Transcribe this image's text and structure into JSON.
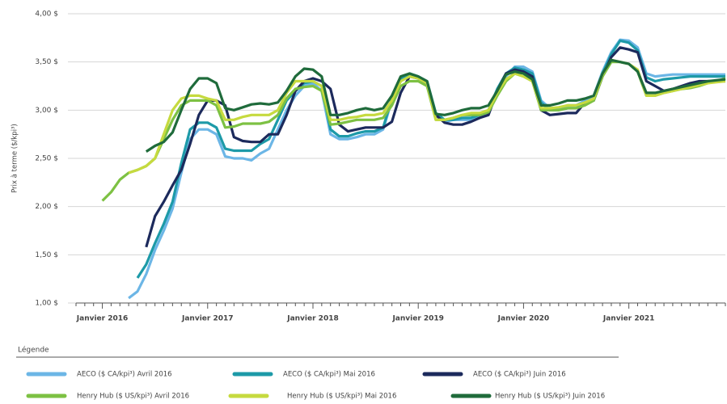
{
  "chart_data": {
    "type": "line",
    "y_label": "Prix à terme ($/kpi³)",
    "legend_title": "Légende",
    "categories": [
      null,
      null,
      null,
      "Janvier 2016",
      null,
      null,
      null,
      null,
      null,
      null,
      null,
      null,
      null,
      null,
      null,
      "Janvier 2017",
      null,
      null,
      null,
      null,
      null,
      null,
      null,
      null,
      null,
      null,
      null,
      "Janvier 2018",
      null,
      null,
      null,
      null,
      null,
      null,
      null,
      null,
      null,
      null,
      null,
      "Janvier 2019",
      null,
      null,
      null,
      null,
      null,
      null,
      null,
      null,
      null,
      null,
      null,
      "Janvier 2020",
      null,
      null,
      null,
      null,
      null,
      null,
      null,
      null,
      null,
      null,
      null,
      "Janvier 2021",
      null,
      null,
      null,
      null,
      null,
      null,
      null,
      null,
      null,
      null,
      null
    ],
    "ylim": [
      1,
      4
    ],
    "yticks": [
      {
        "value": 1,
        "label": "1,00 $"
      },
      {
        "value": 1.5,
        "label": "1,50 $"
      },
      {
        "value": 2,
        "label": "2,00 $"
      },
      {
        "value": 2.5,
        "label": "2,50 $"
      },
      {
        "value": 3,
        "label": "3,00 $"
      },
      {
        "value": 3.5,
        "label": "3,50 $"
      },
      {
        "value": 4,
        "label": "4,00 $"
      }
    ],
    "grid": true,
    "series": [
      {
        "name": "AECO ($ CA/kpi³) Avril 2016",
        "color": "#6cb6e6",
        "values": [
          null,
          null,
          null,
          null,
          null,
          null,
          1.05,
          1.12,
          1.3,
          1.55,
          1.75,
          1.98,
          2.35,
          2.7,
          2.8,
          2.8,
          2.75,
          2.52,
          2.5,
          2.5,
          2.48,
          2.55,
          2.6,
          2.8,
          3.0,
          3.15,
          3.25,
          3.28,
          3.2,
          2.75,
          2.7,
          2.7,
          2.72,
          2.75,
          2.75,
          2.8,
          3.1,
          3.3,
          3.38,
          3.35,
          3.25,
          2.95,
          2.88,
          2.9,
          2.9,
          2.9,
          2.92,
          2.98,
          3.2,
          3.35,
          3.45,
          3.45,
          3.4,
          3.1,
          3.02,
          3.02,
          3.05,
          3.05,
          3.1,
          3.15,
          3.4,
          3.6,
          3.73,
          3.72,
          3.65,
          3.38,
          3.35,
          3.36,
          3.37,
          3.37,
          3.37,
          3.37,
          3.37,
          3.37,
          3.37
        ]
      },
      {
        "name": "AECO ($ CA/kpi³) Mai 2016",
        "color": "#1d9aa8",
        "values": [
          null,
          null,
          null,
          null,
          null,
          null,
          null,
          1.26,
          1.4,
          1.62,
          1.82,
          2.05,
          2.45,
          2.8,
          2.87,
          2.87,
          2.82,
          2.6,
          2.58,
          2.58,
          2.58,
          2.65,
          2.7,
          2.9,
          3.1,
          3.2,
          3.28,
          3.3,
          3.25,
          2.8,
          2.73,
          2.73,
          2.76,
          2.78,
          2.78,
          2.82,
          3.12,
          3.32,
          3.38,
          3.35,
          3.3,
          2.97,
          2.9,
          2.9,
          2.92,
          2.92,
          2.95,
          3.0,
          3.22,
          3.38,
          3.44,
          3.42,
          3.38,
          3.08,
          3.0,
          3.0,
          3.02,
          3.02,
          3.07,
          3.12,
          3.38,
          3.58,
          3.72,
          3.7,
          3.62,
          3.34,
          3.3,
          3.32,
          3.33,
          3.34,
          3.35,
          3.35,
          3.35,
          3.35,
          3.35
        ]
      },
      {
        "name": "AECO ($ CA/kpi³) Juin 2016",
        "color": "#1c2a5c",
        "values": [
          null,
          null,
          null,
          null,
          null,
          null,
          null,
          null,
          1.58,
          1.9,
          2.05,
          2.22,
          2.38,
          2.65,
          2.95,
          3.1,
          3.1,
          3.05,
          2.72,
          2.68,
          2.67,
          2.67,
          2.75,
          2.75,
          2.95,
          3.2,
          3.3,
          3.33,
          3.3,
          3.22,
          2.85,
          2.78,
          2.8,
          2.82,
          2.82,
          2.82,
          2.88,
          3.18,
          3.35,
          3.33,
          3.28,
          2.95,
          2.87,
          2.85,
          2.85,
          2.88,
          2.92,
          2.95,
          3.2,
          3.38,
          3.42,
          3.4,
          3.35,
          3.0,
          2.95,
          2.96,
          2.97,
          2.97,
          3.08,
          3.1,
          3.35,
          3.55,
          3.65,
          3.63,
          3.6,
          3.3,
          3.25,
          3.2,
          3.22,
          3.25,
          3.28,
          3.3,
          3.3,
          3.3,
          3.3
        ]
      },
      {
        "name": "Henry Hub ($ US/kpi³) Avril 2016",
        "color": "#7dc143",
        "values": [
          null,
          null,
          null,
          2.06,
          2.15,
          2.28,
          2.35,
          2.38,
          2.42,
          2.5,
          2.7,
          2.9,
          3.05,
          3.1,
          3.1,
          3.1,
          3.05,
          2.82,
          2.83,
          2.86,
          2.86,
          2.86,
          2.88,
          2.95,
          3.12,
          3.22,
          3.24,
          3.25,
          3.2,
          2.85,
          2.86,
          2.88,
          2.9,
          2.9,
          2.9,
          2.92,
          3.05,
          3.25,
          3.3,
          3.3,
          3.25,
          2.9,
          2.9,
          2.92,
          2.95,
          2.95,
          2.95,
          2.98,
          3.15,
          3.3,
          3.38,
          3.35,
          3.3,
          3.0,
          3.0,
          3.0,
          3.02,
          3.02,
          3.05,
          3.1,
          3.35,
          3.5,
          3.5,
          3.48,
          3.4,
          3.15,
          3.15,
          3.18,
          3.2,
          3.22,
          3.23,
          3.25,
          3.28,
          3.3,
          3.33
        ]
      },
      {
        "name": "Henry Hub ($ US/kpi³) Mai 2016",
        "color": "#c6da3f",
        "values": [
          null,
          null,
          null,
          null,
          null,
          null,
          2.35,
          2.38,
          2.42,
          2.5,
          2.75,
          3.0,
          3.12,
          3.15,
          3.15,
          3.12,
          3.1,
          2.9,
          2.9,
          2.93,
          2.95,
          2.95,
          2.95,
          3.0,
          3.18,
          3.3,
          3.3,
          3.3,
          3.25,
          2.9,
          2.9,
          2.92,
          2.93,
          2.95,
          2.95,
          2.97,
          3.1,
          3.3,
          3.35,
          3.33,
          3.28,
          2.9,
          2.9,
          2.92,
          2.95,
          2.97,
          2.97,
          3.0,
          3.18,
          3.32,
          3.38,
          3.35,
          3.3,
          3.02,
          3.02,
          3.03,
          3.05,
          3.05,
          3.08,
          3.12,
          3.37,
          3.52,
          3.5,
          3.48,
          3.42,
          3.15,
          3.15,
          3.18,
          3.2,
          3.22,
          3.24,
          3.26,
          3.28,
          3.29,
          3.3
        ]
      },
      {
        "name": "Henry Hub ($ US/kpi³) Juin 2016",
        "color": "#1f6b3b",
        "values": [
          null,
          null,
          null,
          null,
          null,
          null,
          null,
          null,
          2.57,
          2.63,
          2.67,
          2.77,
          3.0,
          3.22,
          3.33,
          3.33,
          3.28,
          3.02,
          3.0,
          3.03,
          3.06,
          3.07,
          3.06,
          3.08,
          3.2,
          3.35,
          3.43,
          3.42,
          3.35,
          2.95,
          2.95,
          2.97,
          3.0,
          3.02,
          3.0,
          3.02,
          3.15,
          3.35,
          3.38,
          3.35,
          3.3,
          2.96,
          2.95,
          2.97,
          3.0,
          3.02,
          3.02,
          3.05,
          3.2,
          3.37,
          3.4,
          3.38,
          3.32,
          3.05,
          3.05,
          3.07,
          3.1,
          3.1,
          3.12,
          3.15,
          3.38,
          3.52,
          3.5,
          3.48,
          3.4,
          3.18,
          3.18,
          3.2,
          3.22,
          3.24,
          3.26,
          3.28,
          3.3,
          3.31,
          3.32
        ]
      }
    ]
  }
}
